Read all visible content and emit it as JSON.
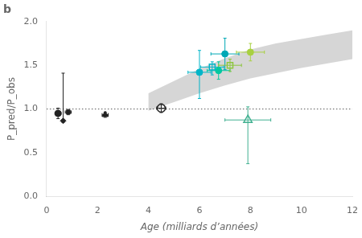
{
  "chart_data": {
    "type": "scatter",
    "title": "b",
    "xlabel": "Age (milliards d’années)",
    "ylabel": "P_pred/P_obs",
    "xlim": [
      0,
      12
    ],
    "ylim": [
      0,
      2.0
    ],
    "xticks": [
      0,
      2,
      4,
      6,
      8,
      10,
      12
    ],
    "yticks": [
      {
        "value": 0,
        "label": "0.0"
      },
      0.5,
      {
        "value": 1.0,
        "label": "1.0"
      },
      1.5,
      {
        "value": 2.0,
        "label": "2.0"
      }
    ],
    "grid": false,
    "band": {
      "color": "#c8c8c8",
      "x": [
        4.0,
        5.0,
        6.0,
        7.0,
        8.0,
        9.0,
        10.0,
        11.0,
        12.0
      ],
      "y_low": [
        0.98,
        1.08,
        1.18,
        1.27,
        1.35,
        1.41,
        1.47,
        1.52,
        1.57
      ],
      "y_high": [
        1.18,
        1.32,
        1.46,
        1.58,
        1.68,
        1.75,
        1.8,
        1.85,
        1.9
      ]
    },
    "reference_line": {
      "y": 1.0,
      "color": "#555555",
      "line_style": "dotted"
    },
    "series": [
      {
        "marker": "none",
        "color": "#222222",
        "x": [
          0.65
        ],
        "values": [
          1.13
        ],
        "xerr": [
          0
        ],
        "yerr_low": [
          0.28
        ],
        "yerr_high": [
          0.28
        ]
      },
      {
        "marker": "circle",
        "color": "#222222",
        "x": [
          0.45
        ],
        "values": [
          0.95
        ],
        "xerr": [
          0.12
        ],
        "yerr_low": [
          0.06
        ],
        "yerr_high": [
          0.06
        ]
      },
      {
        "marker": "diamond",
        "color": "#222222",
        "x": [
          0.65
        ],
        "values": [
          0.865
        ],
        "xerr": [
          0.0
        ],
        "yerr_low": [
          0.0
        ],
        "yerr_high": [
          0.0
        ]
      },
      {
        "marker": "square",
        "color": "#222222",
        "x": [
          0.85
        ],
        "values": [
          0.965
        ],
        "xerr": [
          0.12
        ],
        "yerr_low": [
          0.03
        ],
        "yerr_high": [
          0.03
        ]
      },
      {
        "marker": "triangle",
        "color": "#222222",
        "x": [
          2.3
        ],
        "values": [
          0.935
        ],
        "xerr": [
          0.12
        ],
        "yerr_low": [
          0.03
        ],
        "yerr_high": [
          0.03
        ]
      },
      {
        "marker": "circle_open",
        "color": "#222222",
        "x": [
          4.5
        ],
        "values": [
          1.01
        ],
        "xerr": [
          0.18
        ],
        "yerr_low": [
          0.05
        ],
        "yerr_high": [
          0.05
        ]
      },
      {
        "marker": "circle",
        "color": "#00b5c8",
        "x": [
          6.0
        ],
        "values": [
          1.42
        ],
        "xerr": [
          0.45
        ],
        "yerr_low": [
          0.3
        ],
        "yerr_high": [
          0.25
        ]
      },
      {
        "marker": "square_open",
        "color": "#00b5c8",
        "x": [
          6.5
        ],
        "values": [
          1.48
        ],
        "xerr": [
          0.45
        ],
        "yerr_low": [
          0.09
        ],
        "yerr_high": [
          0.06
        ]
      },
      {
        "marker": "circle",
        "color": "#00c8a0",
        "x": [
          6.75
        ],
        "values": [
          1.44
        ],
        "xerr": [
          0.45
        ],
        "yerr_low": [
          0.1
        ],
        "yerr_high": [
          0.1
        ]
      },
      {
        "marker": "circle",
        "color": "#00a8b5",
        "x": [
          7.0
        ],
        "values": [
          1.63
        ],
        "xerr": [
          0.55
        ],
        "yerr_low": [
          0.18
        ],
        "yerr_high": [
          0.18
        ]
      },
      {
        "marker": "square_open",
        "color": "#8dc63f",
        "x": [
          7.2
        ],
        "values": [
          1.5
        ],
        "xerr": [
          0.45
        ],
        "yerr_low": [
          0.07
        ],
        "yerr_high": [
          0.07
        ]
      },
      {
        "marker": "circle",
        "color": "#a8d040",
        "x": [
          8.0
        ],
        "values": [
          1.65
        ],
        "xerr": [
          0.55
        ],
        "yerr_low": [
          0.1
        ],
        "yerr_high": [
          0.1
        ]
      },
      {
        "marker": "triangle_open",
        "color": "#40b090",
        "x": [
          7.9
        ],
        "values": [
          0.875
        ],
        "xerr": [
          0.9
        ],
        "yerr_low": [
          0.5
        ],
        "yerr_high": [
          0.15
        ]
      }
    ]
  }
}
